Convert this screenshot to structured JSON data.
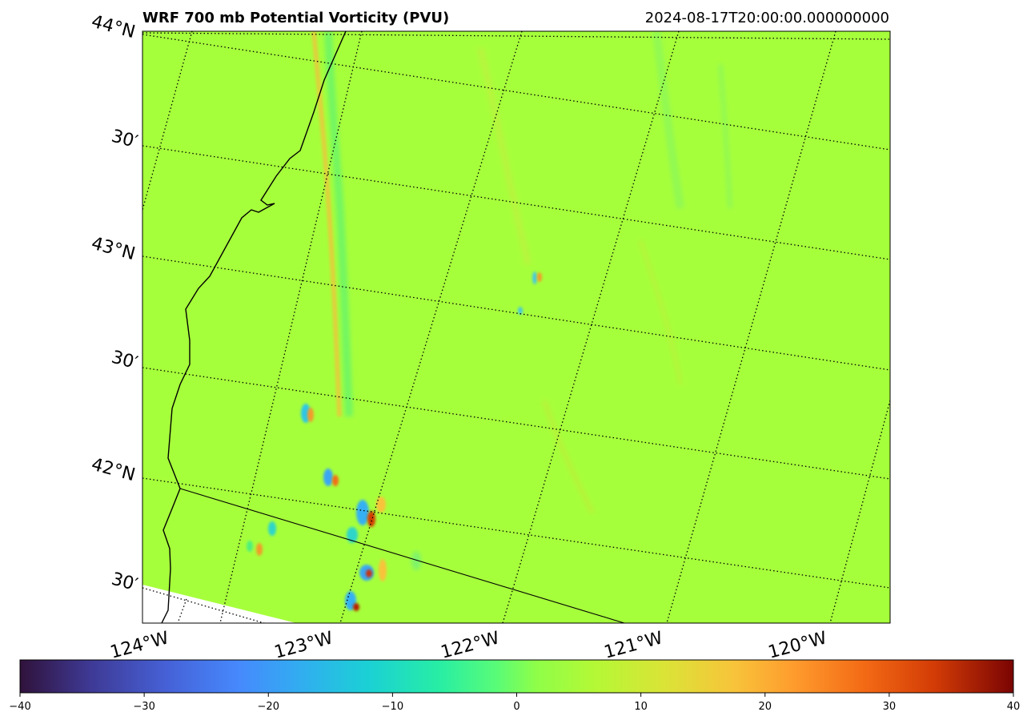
{
  "header": {
    "title": "WRF 700 mb Potential Vorticity (PVU)",
    "valid_time": "2024-08-17T20:00:00.000000000"
  },
  "map": {
    "background_color": "#a6ff3b",
    "nodata_color": "#ffffff",
    "lat_labels": [
      "44°N",
      "30′",
      "43°N",
      "30′",
      "42°N",
      "30′"
    ],
    "lon_labels": [
      "124°W",
      "123°W",
      "122°W",
      "121°W",
      "120°W"
    ],
    "features": [
      "coastline",
      "state-border-oregon-california",
      "graticule-dotted"
    ]
  },
  "colorbar": {
    "colormap": "turbo",
    "min": -40,
    "max": 40,
    "ticks": [
      "−40",
      "−30",
      "−20",
      "−10",
      "0",
      "10",
      "20",
      "30",
      "40"
    ],
    "tick_values": [
      -40,
      -30,
      -20,
      -10,
      0,
      10,
      20,
      30,
      40
    ]
  }
}
